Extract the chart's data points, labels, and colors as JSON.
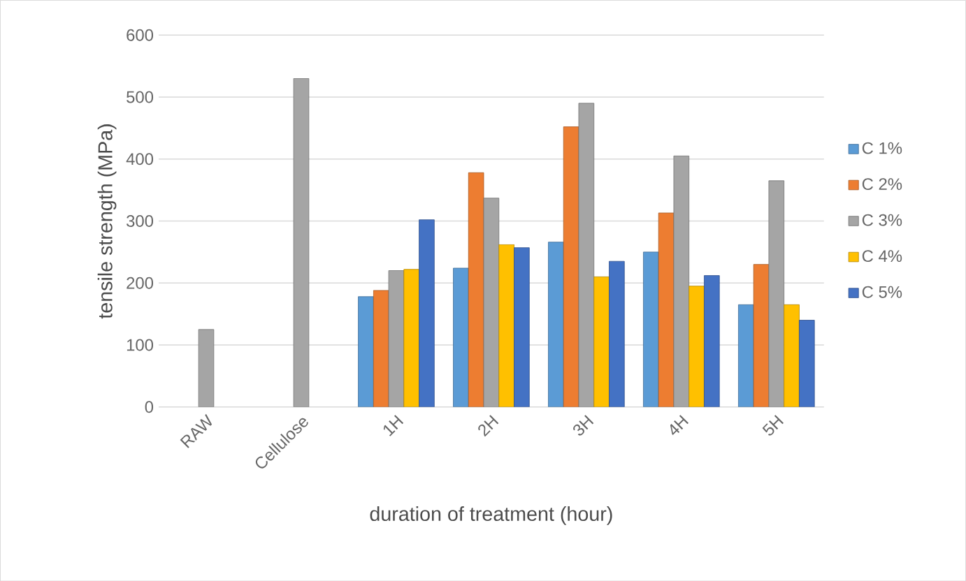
{
  "chart_data": {
    "type": "bar",
    "xlabel": "duration of treatment (hour)",
    "ylabel": "tensile strength (MPa)",
    "categories": [
      "RAW",
      "Cellulose",
      "1H",
      "2H",
      "3H",
      "4H",
      "5H"
    ],
    "series": [
      {
        "name": "C 1%",
        "color": "#5b9bd5",
        "values": [
          null,
          null,
          178,
          224,
          266,
          250,
          165
        ]
      },
      {
        "name": "C 2%",
        "color": "#ed7d31",
        "values": [
          null,
          null,
          188,
          378,
          452,
          313,
          230
        ]
      },
      {
        "name": "C 3%",
        "color": "#a5a5a5",
        "values": [
          125,
          530,
          220,
          337,
          490,
          405,
          365
        ]
      },
      {
        "name": "C 4%",
        "color": "#ffc000",
        "values": [
          null,
          null,
          222,
          262,
          210,
          195,
          165
        ]
      },
      {
        "name": "C 5%",
        "color": "#4472c4",
        "values": [
          null,
          null,
          302,
          257,
          235,
          212,
          140
        ]
      }
    ],
    "ylim": [
      0,
      600
    ],
    "yticks": [
      0,
      100,
      200,
      300,
      400,
      500,
      600
    ],
    "grid": "y",
    "legend": "right"
  }
}
